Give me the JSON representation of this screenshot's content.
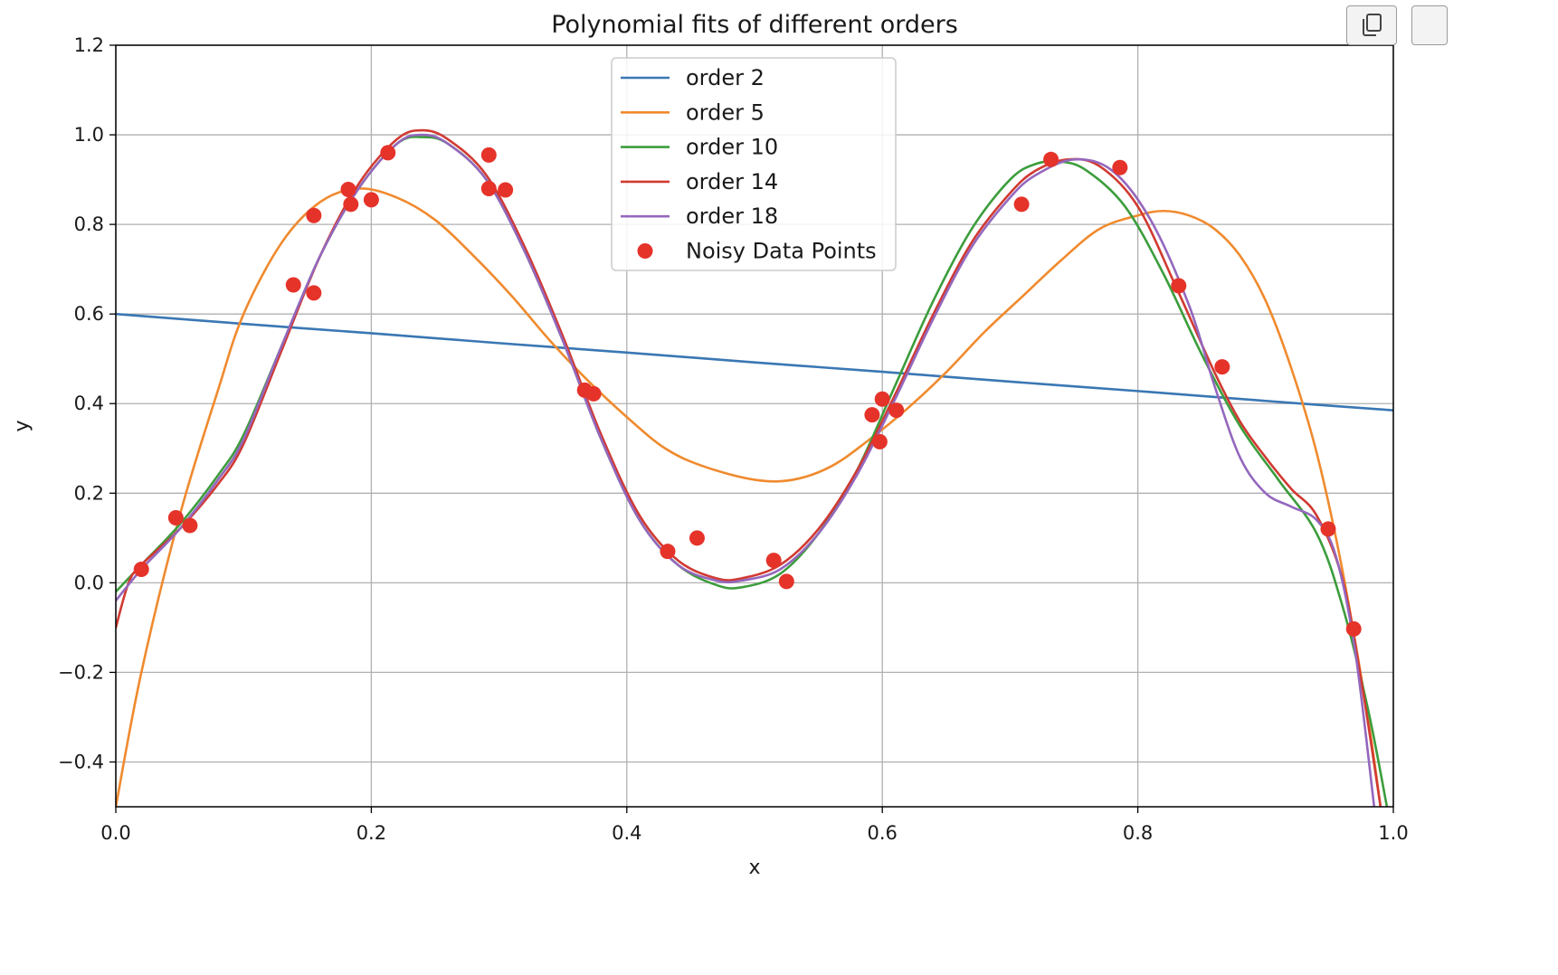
{
  "toolbar": {
    "copy_icon": "copy-icon"
  },
  "chart_data": {
    "type": "line",
    "title": "Polynomial fits of different orders",
    "xlabel": "x",
    "ylabel": "y",
    "xlim": [
      0.0,
      1.0
    ],
    "ylim": [
      -0.5,
      1.2
    ],
    "xticks": [
      "0.0",
      "0.2",
      "0.4",
      "0.6",
      "0.8",
      "1.0"
    ],
    "yticks": [
      "−0.4",
      "−0.2",
      "0.0",
      "0.2",
      "0.4",
      "0.6",
      "0.8",
      "1.0",
      "1.2"
    ],
    "grid": true,
    "legend_position": "upper-center",
    "series": [
      {
        "name": "order 2",
        "color": "#3a77b4",
        "x": [
          0.0,
          0.1,
          0.2,
          0.3,
          0.4,
          0.5,
          0.6,
          0.7,
          0.8,
          0.9,
          1.0
        ],
        "y": [
          0.6,
          0.578,
          0.557,
          0.535,
          0.514,
          0.492,
          0.471,
          0.449,
          0.428,
          0.406,
          0.385
        ]
      },
      {
        "name": "order 5",
        "color": "#f08a2e",
        "x": [
          0.0,
          0.02,
          0.05,
          0.08,
          0.1,
          0.13,
          0.16,
          0.19,
          0.22,
          0.25,
          0.28,
          0.31,
          0.34,
          0.37,
          0.4,
          0.43,
          0.46,
          0.5,
          0.53,
          0.56,
          0.59,
          0.62,
          0.65,
          0.68,
          0.71,
          0.74,
          0.77,
          0.8,
          0.82,
          0.84,
          0.86,
          0.88,
          0.9,
          0.92,
          0.94,
          0.96,
          0.98,
          0.99
        ],
        "y": [
          -0.5,
          -0.2,
          0.15,
          0.43,
          0.6,
          0.76,
          0.85,
          0.88,
          0.86,
          0.81,
          0.73,
          0.64,
          0.54,
          0.45,
          0.37,
          0.3,
          0.26,
          0.23,
          0.23,
          0.26,
          0.32,
          0.39,
          0.47,
          0.56,
          0.64,
          0.72,
          0.79,
          0.82,
          0.83,
          0.82,
          0.79,
          0.73,
          0.63,
          0.48,
          0.29,
          0.03,
          -0.3,
          -0.5
        ]
      },
      {
        "name": "order 10",
        "color": "#3c9d3c",
        "x": [
          0.0,
          0.02,
          0.05,
          0.08,
          0.1,
          0.13,
          0.16,
          0.19,
          0.22,
          0.24,
          0.26,
          0.29,
          0.32,
          0.35,
          0.38,
          0.41,
          0.44,
          0.47,
          0.49,
          0.52,
          0.55,
          0.58,
          0.61,
          0.64,
          0.67,
          0.7,
          0.72,
          0.74,
          0.76,
          0.79,
          0.82,
          0.85,
          0.88,
          0.91,
          0.94,
          0.96,
          0.98,
          0.995
        ],
        "y": [
          -0.02,
          0.04,
          0.13,
          0.24,
          0.33,
          0.53,
          0.73,
          0.88,
          0.98,
          0.995,
          0.98,
          0.9,
          0.74,
          0.54,
          0.32,
          0.14,
          0.04,
          -0.005,
          -0.01,
          0.02,
          0.11,
          0.25,
          0.44,
          0.63,
          0.79,
          0.9,
          0.935,
          0.94,
          0.92,
          0.84,
          0.69,
          0.51,
          0.35,
          0.23,
          0.11,
          -0.05,
          -0.28,
          -0.5
        ]
      },
      {
        "name": "order 14",
        "color": "#d03a32",
        "x": [
          0.0,
          0.01,
          0.02,
          0.05,
          0.08,
          0.1,
          0.13,
          0.16,
          0.19,
          0.22,
          0.24,
          0.26,
          0.29,
          0.32,
          0.35,
          0.38,
          0.41,
          0.44,
          0.47,
          0.49,
          0.52,
          0.55,
          0.58,
          0.61,
          0.64,
          0.67,
          0.7,
          0.72,
          0.745,
          0.77,
          0.8,
          0.83,
          0.86,
          0.88,
          0.9,
          0.92,
          0.94,
          0.96,
          0.975,
          0.99
        ],
        "y": [
          -0.1,
          0.0,
          0.04,
          0.12,
          0.22,
          0.31,
          0.52,
          0.73,
          0.89,
          0.99,
          1.01,
          0.99,
          0.91,
          0.75,
          0.55,
          0.33,
          0.15,
          0.05,
          0.01,
          0.01,
          0.04,
          0.12,
          0.25,
          0.42,
          0.6,
          0.76,
          0.87,
          0.92,
          0.945,
          0.93,
          0.84,
          0.66,
          0.47,
          0.36,
          0.28,
          0.21,
          0.15,
          0.01,
          -0.22,
          -0.5
        ]
      },
      {
        "name": "order 18",
        "color": "#9467bd",
        "x": [
          0.0,
          0.02,
          0.05,
          0.08,
          0.1,
          0.13,
          0.16,
          0.19,
          0.22,
          0.24,
          0.26,
          0.29,
          0.32,
          0.35,
          0.38,
          0.41,
          0.44,
          0.47,
          0.49,
          0.52,
          0.55,
          0.58,
          0.61,
          0.64,
          0.67,
          0.7,
          0.72,
          0.75,
          0.78,
          0.81,
          0.84,
          0.86,
          0.88,
          0.9,
          0.92,
          0.94,
          0.955,
          0.97,
          0.985
        ],
        "y": [
          -0.04,
          0.03,
          0.12,
          0.23,
          0.32,
          0.53,
          0.73,
          0.88,
          0.98,
          1.0,
          0.98,
          0.9,
          0.74,
          0.54,
          0.32,
          0.14,
          0.04,
          0.005,
          0.005,
          0.03,
          0.11,
          0.24,
          0.41,
          0.59,
          0.75,
          0.86,
          0.91,
          0.945,
          0.92,
          0.81,
          0.62,
          0.44,
          0.28,
          0.2,
          0.17,
          0.14,
          0.06,
          -0.15,
          -0.5
        ]
      }
    ],
    "scatter": {
      "name": "Noisy Data Points",
      "color": "#e5332a",
      "points": [
        [
          0.02,
          0.03
        ],
        [
          0.047,
          0.145
        ],
        [
          0.058,
          0.128
        ],
        [
          0.139,
          0.665
        ],
        [
          0.155,
          0.82
        ],
        [
          0.155,
          0.647
        ],
        [
          0.182,
          0.878
        ],
        [
          0.184,
          0.845
        ],
        [
          0.2,
          0.855
        ],
        [
          0.213,
          0.96
        ],
        [
          0.292,
          0.955
        ],
        [
          0.292,
          0.88
        ],
        [
          0.305,
          0.877
        ],
        [
          0.367,
          0.43
        ],
        [
          0.374,
          0.422
        ],
        [
          0.432,
          0.07
        ],
        [
          0.455,
          0.1
        ],
        [
          0.515,
          0.05
        ],
        [
          0.525,
          0.003
        ],
        [
          0.592,
          0.375
        ],
        [
          0.598,
          0.315
        ],
        [
          0.6,
          0.41
        ],
        [
          0.611,
          0.385
        ],
        [
          0.709,
          0.845
        ],
        [
          0.732,
          0.945
        ],
        [
          0.786,
          0.927
        ],
        [
          0.832,
          0.663
        ],
        [
          0.866,
          0.482
        ],
        [
          0.949,
          0.12
        ],
        [
          0.969,
          -0.103
        ]
      ]
    }
  }
}
